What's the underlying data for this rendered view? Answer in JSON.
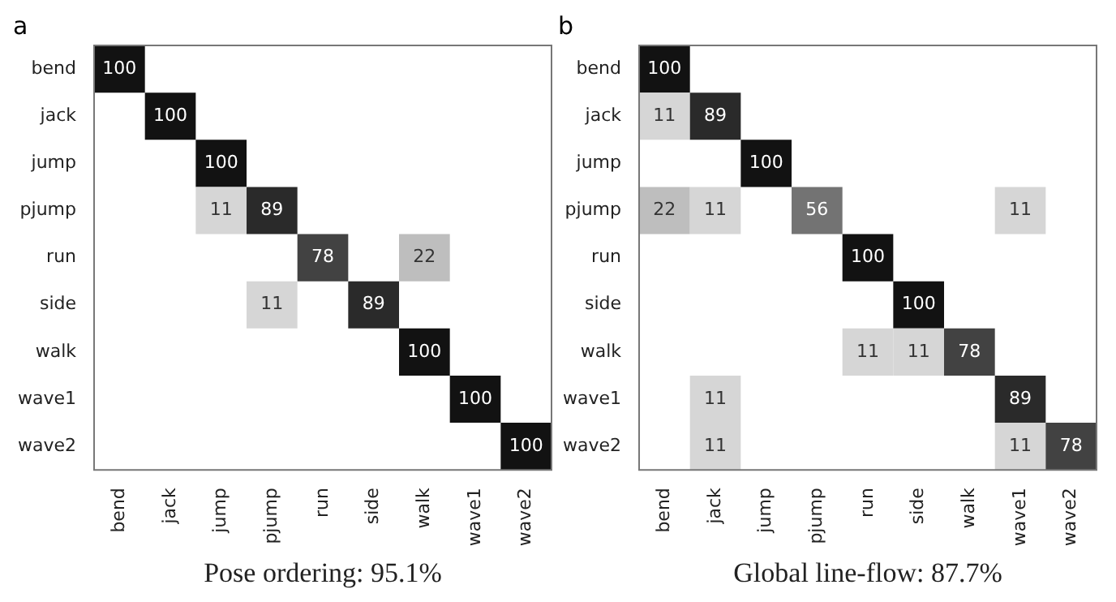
{
  "chart_data": [
    {
      "type": "heatmap",
      "data_labels": true,
      "title": "a",
      "xlabel": "Pose ordering: 95.1%",
      "categories": [
        "bend",
        "jack",
        "jump",
        "pjump",
        "run",
        "side",
        "walk",
        "wave1",
        "wave2"
      ],
      "y_categories": [
        "bend",
        "jack",
        "jump",
        "pjump",
        "run",
        "side",
        "walk",
        "wave1",
        "wave2"
      ],
      "cells": [
        [
          100,
          null,
          null,
          null,
          null,
          null,
          null,
          null,
          null
        ],
        [
          null,
          100,
          null,
          null,
          null,
          null,
          null,
          null,
          null
        ],
        [
          null,
          null,
          100,
          null,
          null,
          null,
          null,
          null,
          null
        ],
        [
          null,
          null,
          11,
          89,
          null,
          null,
          null,
          null,
          null
        ],
        [
          null,
          null,
          null,
          null,
          78,
          null,
          22,
          null,
          null
        ],
        [
          null,
          null,
          null,
          11,
          null,
          89,
          null,
          null,
          null
        ],
        [
          null,
          null,
          null,
          null,
          null,
          null,
          100,
          null,
          null
        ],
        [
          null,
          null,
          null,
          null,
          null,
          null,
          null,
          100,
          null
        ],
        [
          null,
          null,
          null,
          null,
          null,
          null,
          null,
          null,
          100
        ]
      ]
    },
    {
      "type": "heatmap",
      "data_labels": true,
      "title": "b",
      "xlabel": "Global line-flow: 87.7%",
      "categories": [
        "bend",
        "jack",
        "jump",
        "pjump",
        "run",
        "side",
        "walk",
        "wave1",
        "wave2"
      ],
      "y_categories": [
        "bend",
        "jack",
        "jump",
        "pjump",
        "run",
        "side",
        "walk",
        "wave1",
        "wave2"
      ],
      "cells": [
        [
          100,
          null,
          null,
          null,
          null,
          null,
          null,
          null,
          null
        ],
        [
          11,
          89,
          null,
          null,
          null,
          null,
          null,
          null,
          null
        ],
        [
          null,
          null,
          100,
          null,
          null,
          null,
          null,
          null,
          null
        ],
        [
          22,
          11,
          null,
          56,
          null,
          null,
          null,
          11,
          null
        ],
        [
          null,
          null,
          null,
          null,
          100,
          null,
          null,
          null,
          null
        ],
        [
          null,
          null,
          null,
          null,
          null,
          100,
          null,
          null,
          null
        ],
        [
          null,
          null,
          null,
          null,
          11,
          11,
          78,
          null,
          null
        ],
        [
          null,
          11,
          null,
          null,
          null,
          null,
          null,
          89,
          null
        ],
        [
          null,
          11,
          null,
          null,
          null,
          null,
          null,
          11,
          78
        ]
      ]
    }
  ]
}
